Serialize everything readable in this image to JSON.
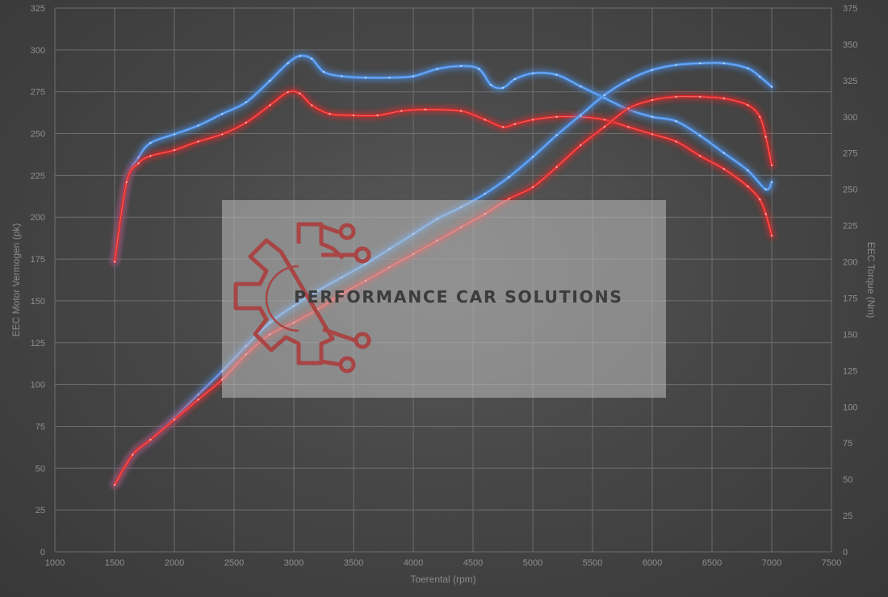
{
  "chart_data": {
    "type": "line",
    "xlabel": "Toerental (rpm)",
    "ylabel_left": "EEC Motor Vermogen (pk)",
    "ylabel_right": "EEC Torque (Nm)",
    "xlim": [
      1000,
      7500
    ],
    "xticks": [
      1000,
      1500,
      2000,
      2500,
      3000,
      3500,
      4000,
      4500,
      5000,
      5500,
      6000,
      6500,
      7000,
      7500
    ],
    "ylim_left": [
      0,
      325
    ],
    "yticks_left": [
      0,
      25,
      50,
      75,
      100,
      125,
      150,
      175,
      200,
      225,
      250,
      275,
      300,
      325
    ],
    "ylim_right": [
      0,
      375
    ],
    "yticks_right": [
      0,
      25,
      50,
      75,
      100,
      125,
      150,
      175,
      200,
      225,
      250,
      275,
      300,
      325,
      350,
      375
    ],
    "grid": true,
    "colors": {
      "tuned": "#4a90e8",
      "stock": "#e02828"
    },
    "series": [
      {
        "group": "tuned",
        "axis": "right",
        "x": [
          1500,
          1600,
          1700,
          1800,
          2000,
          2200,
          2400,
          2600,
          2800,
          2950,
          3050,
          3150,
          3250,
          3400,
          3600,
          3800,
          4000,
          4200,
          4400,
          4550,
          4650,
          4750,
          4850,
          5000,
          5200,
          5400,
          5600,
          5800,
          6000,
          6200,
          6400,
          6600,
          6800,
          6950,
          7000
        ],
        "y": [
          200,
          255,
          272,
          282,
          288,
          294,
          302,
          310,
          325,
          337,
          342,
          340,
          331,
          328,
          327,
          327,
          328,
          333,
          335,
          333,
          322,
          320,
          326,
          330,
          329,
          321,
          313,
          305,
          300,
          297,
          287,
          275,
          263,
          250,
          255
        ]
      },
      {
        "group": "stock",
        "axis": "right",
        "x": [
          1500,
          1600,
          1700,
          1800,
          2000,
          2200,
          2400,
          2600,
          2800,
          2950,
          3050,
          3150,
          3300,
          3500,
          3700,
          3900,
          4100,
          4400,
          4600,
          4750,
          4850,
          5000,
          5200,
          5400,
          5600,
          5800,
          6000,
          6200,
          6400,
          6600,
          6800,
          6900,
          6950,
          7000
        ],
        "y": [
          200,
          255,
          268,
          273,
          277,
          283,
          288,
          296,
          308,
          317,
          316,
          308,
          302,
          301,
          301,
          304,
          305,
          304,
          298,
          293,
          295,
          298,
          300,
          300,
          298,
          293,
          288,
          283,
          273,
          264,
          252,
          243,
          233,
          218
        ]
      },
      {
        "group": "tuned",
        "axis": "left",
        "x": [
          1500,
          1650,
          1800,
          2000,
          2200,
          2400,
          2600,
          2800,
          3000,
          3200,
          3400,
          3600,
          3800,
          4000,
          4200,
          4400,
          4600,
          4800,
          5000,
          5200,
          5400,
          5600,
          5800,
          6000,
          6200,
          6400,
          6600,
          6800,
          6900,
          7000
        ],
        "y": [
          40,
          58,
          67,
          80,
          94,
          108,
          123,
          137,
          147,
          156,
          164,
          172,
          181,
          190,
          199,
          206,
          214,
          224,
          236,
          249,
          261,
          273,
          282,
          288,
          291,
          292,
          292,
          289,
          284,
          278
        ]
      },
      {
        "group": "stock",
        "axis": "left",
        "x": [
          1500,
          1650,
          1800,
          2000,
          2200,
          2400,
          2600,
          2800,
          3000,
          3200,
          3400,
          3600,
          3800,
          4000,
          4200,
          4400,
          4600,
          4800,
          5000,
          5200,
          5400,
          5600,
          5800,
          6000,
          6200,
          6400,
          6600,
          6800,
          6900,
          6950,
          7000
        ],
        "y": [
          40,
          58,
          67,
          79,
          91,
          103,
          118,
          130,
          137,
          145,
          154,
          162,
          170,
          178,
          186,
          194,
          202,
          211,
          218,
          230,
          243,
          254,
          265,
          270,
          272,
          272,
          271,
          267,
          260,
          248,
          231
        ]
      }
    ]
  },
  "watermark": {
    "text": "PERFORMANCE CAR SOLUTIONS",
    "logo_icon": "gear-circuit-logo-icon"
  }
}
